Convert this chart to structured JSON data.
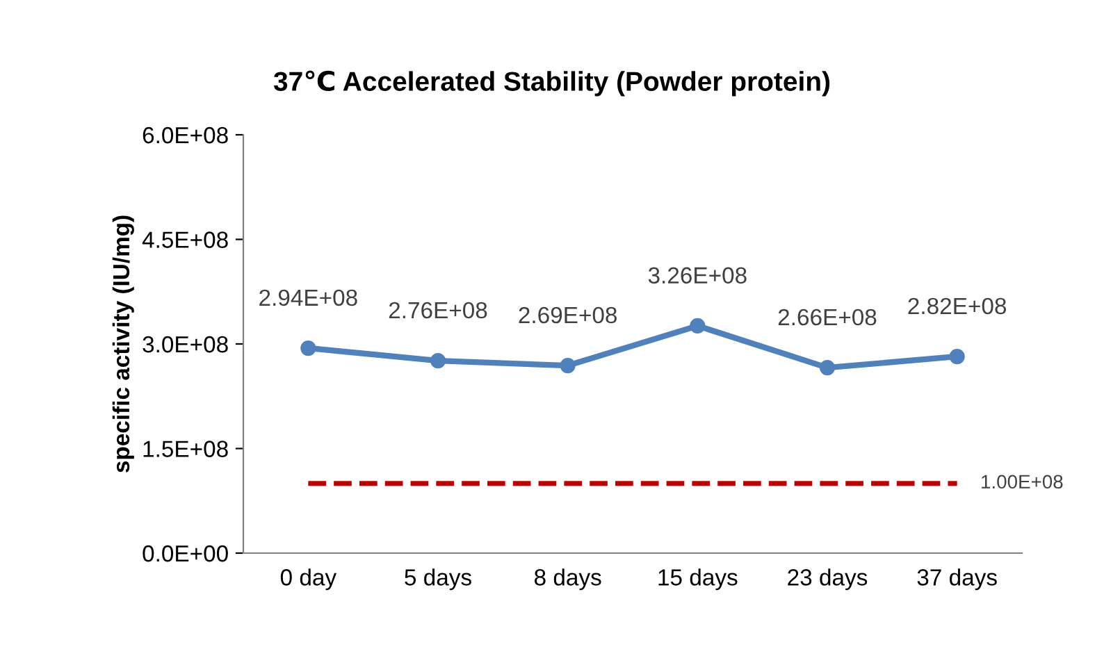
{
  "chart_data": {
    "type": "line",
    "title": "37℃ Accelerated Stability (Powder protein)",
    "ylabel": "specific activity (IU/mg)",
    "categories": [
      "0 day",
      "5 days",
      "8 days",
      "15 days",
      "23 days",
      "37 days"
    ],
    "series": [
      {
        "color": "#4f81bd",
        "values": [
          294000000,
          276000000,
          269000000,
          326000000,
          266000000,
          282000000
        ],
        "value_labels": [
          "2.94E+08",
          "2.76E+08",
          "2.69E+08",
          "3.26E+08",
          "2.66E+08",
          "2.82E+08"
        ]
      }
    ],
    "ylim": [
      0,
      600000000
    ],
    "yticks": [
      {
        "value": 0,
        "label": "0.0E+00"
      },
      {
        "value": 150000000,
        "label": "1.5E+08"
      },
      {
        "value": 300000000,
        "label": "3.0E+08"
      },
      {
        "value": 450000000,
        "label": "4.5E+08"
      },
      {
        "value": 600000000,
        "label": "6.0E+08"
      }
    ],
    "ref_lines": [
      {
        "axis": "y",
        "value": 100000000,
        "label": "1.00E+08",
        "color": "#c00000",
        "line_style": "dashed"
      }
    ],
    "marker": "circle",
    "line_style": "solid",
    "grid": false,
    "legend": false
  }
}
